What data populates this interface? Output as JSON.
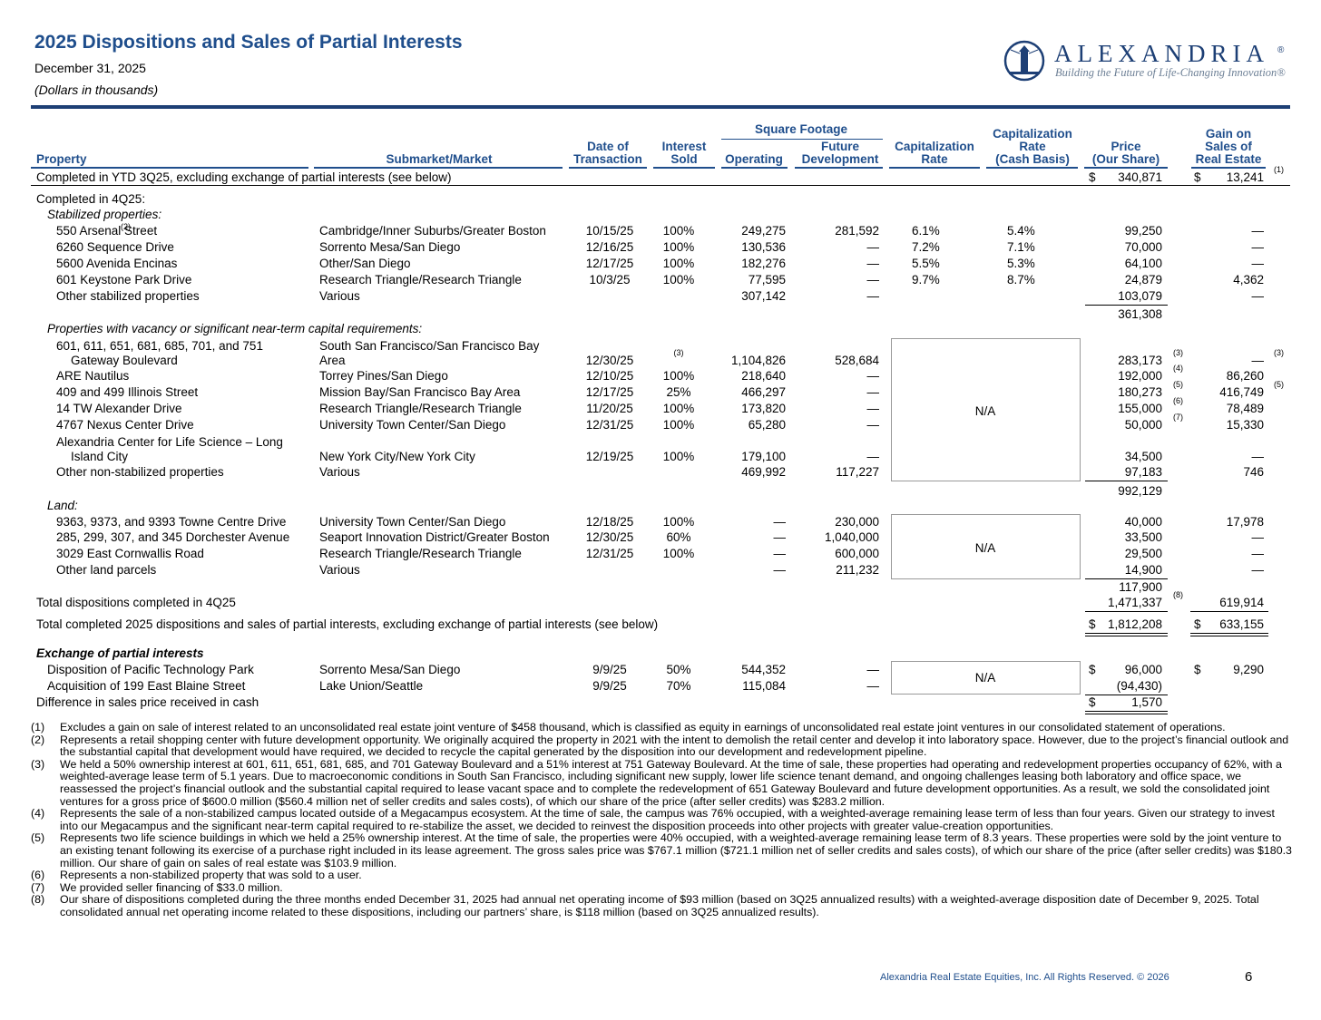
{
  "header": {
    "title": "2025 Dispositions and Sales of Partial Interests",
    "date": "December 31, 2025",
    "units": "(Dollars in thousands)"
  },
  "logo": {
    "name": "ALEXANDRIA",
    "mark": "®",
    "tagline": "Building the Future of Life-Changing Innovation®"
  },
  "table": {
    "square_footage": "Square Footage",
    "columns": [
      [
        "Property"
      ],
      [
        "Submarket/Market"
      ],
      [
        "Date of",
        "Transaction"
      ],
      [
        "Interest",
        "Sold"
      ],
      [
        "Operating"
      ],
      [
        "Future",
        "Development"
      ],
      [
        "Capitalization",
        "Rate"
      ],
      [
        "Capitalization",
        "Rate",
        "(Cash Basis)"
      ],
      [
        "Price",
        "(Our Share)"
      ],
      [
        "Gain on",
        "Sales of",
        "Real Estate"
      ]
    ],
    "na": [
      "N/A",
      "N/A",
      "N/A"
    ],
    "rows": [
      {
        "property": "Completed in YTD 3Q25, excluding exchange of partial interests (see below)",
        "price_dollar": "$",
        "price": "340,871",
        "gain_dollar": "$",
        "gain": "13,241",
        "gain_note": "(1)"
      },
      {
        "property": "Completed in 4Q25:"
      },
      {
        "property": "Stabilized properties:"
      },
      {
        "property": "550 Arsenal Street",
        "property_note": "(2)",
        "market": "Cambridge/Inner Suburbs/Greater Boston",
        "date": "10/15/25",
        "interest": "100%",
        "operating": "249,275",
        "future": "281,592",
        "cap": "6.1%",
        "cap_cash": "5.4%",
        "price": "99,250",
        "gain": "—"
      },
      {
        "property": "6260 Sequence Drive",
        "market": "Sorrento Mesa/San Diego",
        "date": "12/16/25",
        "interest": "100%",
        "operating": "130,536",
        "future": "—",
        "cap": "7.2%",
        "cap_cash": "7.1%",
        "price": "70,000",
        "gain": "—"
      },
      {
        "property": "5600 Avenida Encinas",
        "market": "Other/San Diego",
        "date": "12/17/25",
        "interest": "100%",
        "operating": "182,276",
        "future": "—",
        "cap": "5.5%",
        "cap_cash": "5.3%",
        "price": "64,100",
        "gain": "—"
      },
      {
        "property": "601 Keystone Park Drive",
        "market": "Research Triangle/Research Triangle",
        "date": "10/3/25",
        "interest": "100%",
        "operating": "77,595",
        "future": "—",
        "cap": "9.7%",
        "cap_cash": "8.7%",
        "price": "24,879",
        "gain": "4,362"
      },
      {
        "property": "Other stabilized properties",
        "market": "Various",
        "operating": "307,142",
        "future": "—",
        "price": "103,079",
        "gain": "—"
      },
      {
        "price": "361,308"
      },
      {
        "property": "Properties with vacancy or significant near-term capital requirements:"
      },
      {
        "property": [
          "601, 611, 651, 681, 685, 701, and 751",
          "Gateway Boulevard"
        ],
        "market": [
          "South San Francisco/San Francisco Bay",
          "Area"
        ],
        "date": "12/30/25",
        "interest_note": "(3)",
        "operating": "1,104,826",
        "future": "528,684",
        "price": "283,173",
        "price_note": "(3)",
        "gain": "—",
        "gain_note": "(3)"
      },
      {
        "property": "ARE Nautilus",
        "market": "Torrey Pines/San Diego",
        "date": "12/10/25",
        "interest": "100%",
        "operating": "218,640",
        "future": "—",
        "price": "192,000",
        "price_note": "(4)",
        "gain": "86,260"
      },
      {
        "property": "409 and 499 Illinois Street",
        "market": "Mission Bay/San Francisco Bay Area",
        "date": "12/17/25",
        "interest": "25%",
        "operating": "466,297",
        "future": "—",
        "price": "180,273",
        "price_note": "(5)",
        "gain": "416,749",
        "gain_note": "(5)"
      },
      {
        "property": "14 TW Alexander Drive",
        "market": "Research Triangle/Research Triangle",
        "date": "11/20/25",
        "interest": "100%",
        "operating": "173,820",
        "future": "—",
        "price": "155,000",
        "price_note": "(6)",
        "gain": "78,489"
      },
      {
        "property": "4767 Nexus Center Drive",
        "market": "University Town Center/San Diego",
        "date": "12/31/25",
        "interest": "100%",
        "operating": "65,280",
        "future": "—",
        "price": "50,000",
        "price_note": "(7)",
        "gain": "15,330"
      },
      {
        "property": [
          "Alexandria Center for Life Science – Long",
          "Island City"
        ],
        "market": "New York City/New York City",
        "date": "12/19/25",
        "interest": "100%",
        "operating": "179,100",
        "future": "—",
        "price": "34,500",
        "gain": "—"
      },
      {
        "property": "Other non-stabilized properties",
        "market": "Various",
        "operating": "469,992",
        "future": "117,227",
        "price": "97,183",
        "gain": "746"
      },
      {
        "price": "992,129"
      },
      {
        "property": "Land:"
      },
      {
        "property": "9363, 9373, and 9393 Towne Centre Drive",
        "market": "University Town Center/San Diego",
        "date": "12/18/25",
        "interest": "100%",
        "operating": "—",
        "future": "230,000",
        "price": "40,000",
        "gain": "17,978"
      },
      {
        "property": "285, 299, 307, and 345 Dorchester Avenue",
        "market": "Seaport Innovation District/Greater Boston",
        "date": "12/30/25",
        "interest": "60%",
        "operating": "—",
        "future": "1,040,000",
        "price": "33,500",
        "gain": "—"
      },
      {
        "property": "3029 East Cornwallis Road",
        "market": "Research Triangle/Research Triangle",
        "date": "12/31/25",
        "interest": "100%",
        "operating": "—",
        "future": "600,000",
        "price": "29,500",
        "gain": "—"
      },
      {
        "property": "Other land parcels",
        "market": "Various",
        "operating": "—",
        "future": "211,232",
        "price": "14,900",
        "gain": "—"
      },
      {
        "price": "117,900"
      },
      {
        "property": "Total dispositions completed in 4Q25",
        "price": "1,471,337",
        "price_note": "(8)",
        "gain": "619,914"
      },
      {
        "property": "Total completed 2025 dispositions and sales of partial interests, excluding exchange of partial interests (see below)",
        "price_dollar": "$",
        "price": "1,812,208",
        "gain_dollar": "$",
        "gain": "633,155"
      },
      {
        "property": "Exchange of partial interests"
      },
      {
        "property": "Disposition of Pacific Technology Park",
        "market": "Sorrento Mesa/San Diego",
        "date": "9/9/25",
        "interest": "50%",
        "operating": "544,352",
        "future": "—",
        "price_dollar": "$",
        "price": "96,000",
        "gain_dollar": "$",
        "gain": "9,290"
      },
      {
        "property": "Acquisition of 199 East Blaine Street",
        "market": "Lake Union/Seattle",
        "date": "9/9/25",
        "interest": "70%",
        "operating": "115,084",
        "future": "—",
        "price": "(94,430)"
      },
      {
        "property": "Difference in sales price received in cash",
        "price_dollar": "$",
        "price": "1,570"
      }
    ]
  },
  "footnotes": [
    {
      "marker": "(1)",
      "text": "Excludes a gain on sale of interest related to an unconsolidated real estate joint venture of $458 thousand, which is classified as equity in earnings of unconsolidated real estate joint ventures in our consolidated statement of operations."
    },
    {
      "marker": "(2)",
      "text": "Represents a retail shopping center with future development opportunity. We originally acquired the property in 2021 with the intent to demolish the retail center and develop it into laboratory space. However, due to the project’s financial outlook and the substantial capital that development would have required, we decided to recycle the capital generated by the disposition into our development and redevelopment pipeline."
    },
    {
      "marker": "(3)",
      "text": "We held a 50% ownership interest at 601, 611, 651, 681, 685, and 701 Gateway Boulevard and a 51% interest at 751 Gateway Boulevard. At the time of sale, these properties had operating and redevelopment properties occupancy of 62%, with a weighted-average lease term of 5.1 years. Due to macroeconomic conditions in South San Francisco, including significant new supply, lower life science tenant demand, and ongoing challenges leasing both laboratory and office space, we reassessed the project’s financial outlook and the substantial capital required to lease vacant space and to complete the redevelopment of 651 Gateway Boulevard and future development opportunities. As a result, we sold the consolidated joint ventures for a gross price of $600.0 million ($560.4 million net of seller credits and sales costs), of which our share of the price (after seller credits) was $283.2 million."
    },
    {
      "marker": "(4)",
      "text": "Represents the sale of a non-stabilized campus located outside of a Megacampus ecosystem. At the time of sale, the campus was 76% occupied, with a weighted-average remaining lease term of less than four years. Given our strategy to invest into our Megacampus and the significant near-term capital required to re-stabilize the asset, we decided to reinvest the disposition proceeds into other projects with greater value-creation opportunities."
    },
    {
      "marker": "(5)",
      "text": "Represents two life science buildings in which we held a 25% ownership interest. At the time of sale, the properties were 40% occupied, with a weighted-average remaining lease term of 8.3 years. These properties were sold by the joint venture to an existing tenant following its exercise of a purchase right included in its lease agreement. The gross sales price was $767.1 million ($721.1 million net of seller credits and sales costs), of which our share of the price (after seller credits) was $180.3 million. Our share of gain on sales of real estate was $103.9 million."
    },
    {
      "marker": "(6)",
      "text": "Represents a non-stabilized property that was sold to a user."
    },
    {
      "marker": "(7)",
      "text": "We provided seller financing of $33.0 million."
    },
    {
      "marker": "(8)",
      "text": "Our share of dispositions completed during the three months ended December 31, 2025 had annual net operating income of $93 million (based on 3Q25 annualized results) with a weighted-average disposition date of December 9, 2025. Total consolidated annual net operating income related to these dispositions, including our partners’ share, is $118 million (based on 3Q25 annualized results)."
    }
  ],
  "footer": {
    "copyright": "Alexandria Real Estate Equities, Inc. All Rights Reserved. © 2026",
    "page": 6
  }
}
